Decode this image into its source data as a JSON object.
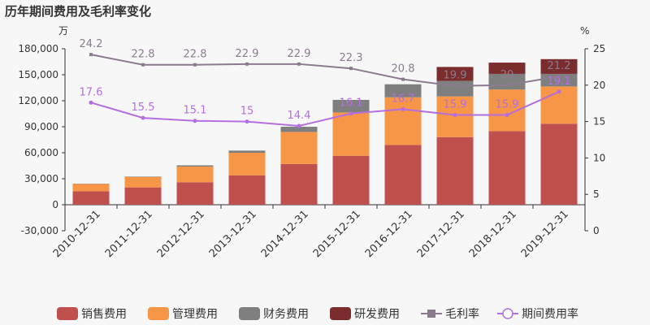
{
  "chart_data": {
    "title": "历年期间费用及毛利率变化",
    "type": "bar",
    "left_unit": "万",
    "right_unit": "%",
    "categories": [
      "2010-12-31",
      "2011-12-31",
      "2012-12-31",
      "2013-12-31",
      "2014-12-31",
      "2015-12-31",
      "2016-12-31",
      "2017-12-31",
      "2018-12-31",
      "2019-12-31"
    ],
    "ylim_left": [
      -30000,
      180000
    ],
    "yticks_left": [
      "-30,000",
      "0",
      "30,000",
      "60,000",
      "90,000",
      "120,000",
      "150,000",
      "180,000"
    ],
    "ylim_right": [
      0,
      25
    ],
    "yticks_right": [
      "0",
      "5",
      "10",
      "15",
      "20",
      "25"
    ],
    "stacked_series": [
      {
        "name": "销售费用",
        "color": "#c0504d",
        "values": [
          15500,
          20000,
          26000,
          34000,
          47000,
          56500,
          69000,
          78000,
          85000,
          93500
        ]
      },
      {
        "name": "管理费用",
        "color": "#f79646",
        "values": [
          8500,
          12000,
          18000,
          26000,
          37000,
          50000,
          55000,
          47000,
          48000,
          43000
        ]
      },
      {
        "name": "财务费用",
        "color": "#7f7f7f",
        "values": [
          300,
          500,
          1500,
          2500,
          6000,
          14500,
          15000,
          18000,
          18000,
          14500
        ]
      },
      {
        "name": "研发费用",
        "color": "#7b2c2c",
        "values": [
          0,
          0,
          0,
          0,
          0,
          0,
          0,
          16000,
          13000,
          17000
        ]
      }
    ],
    "line_series": [
      {
        "name": "毛利率",
        "color": "#8c7b8f",
        "values": [
          24.2,
          22.8,
          22.8,
          22.9,
          22.9,
          22.3,
          20.8,
          19.9,
          20,
          21.2
        ],
        "labels": [
          "24.2",
          "22.8",
          "22.8",
          "22.9",
          "22.9",
          "22.3",
          "20.8",
          "19.9",
          "20",
          "21.2"
        ]
      },
      {
        "name": "期间费用率",
        "color": "#b46ee0",
        "values": [
          17.6,
          15.5,
          15.1,
          15.0,
          14.4,
          16.1,
          16.7,
          15.9,
          15.9,
          19.1
        ],
        "labels": [
          "17.6",
          "15.5",
          "15.1",
          "15",
          "14.4",
          "16.1",
          "16.7",
          "15.9",
          "15.9",
          "19.1"
        ]
      }
    ]
  }
}
